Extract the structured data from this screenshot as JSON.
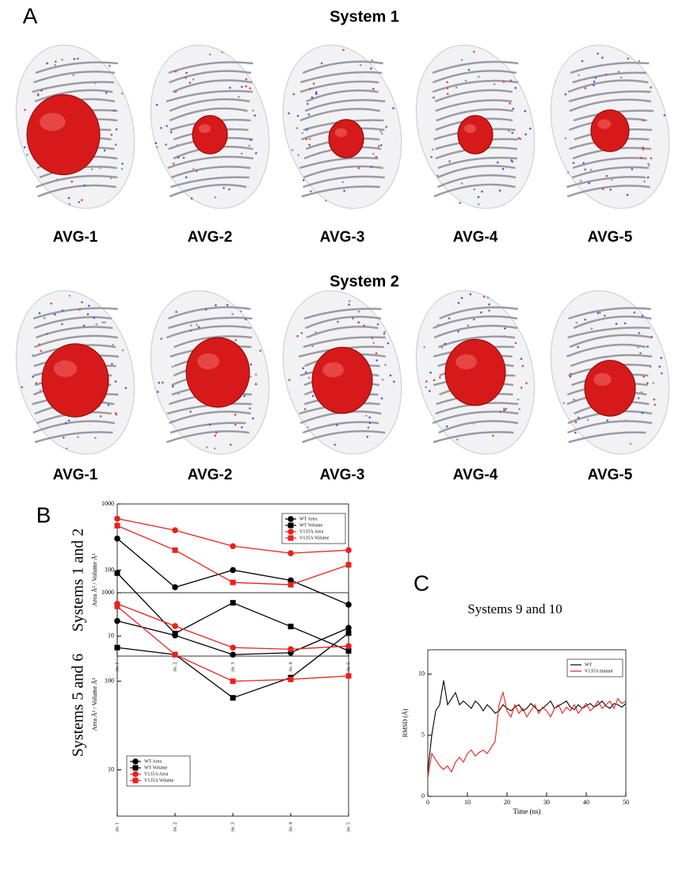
{
  "panel_labels": [
    "A",
    "B",
    "C"
  ],
  "structures": [
    {
      "title": "System 1",
      "labels": [
        "AVG-1",
        "AVG-2",
        "AVG-3",
        "AVG-4",
        "AVG-5"
      ]
    },
    {
      "title": "System 2",
      "labels": [
        "AVG-1",
        "AVG-2",
        "AVG-3",
        "AVG-4",
        "AVG-5"
      ]
    }
  ],
  "chart_data": [
    {
      "type": "line",
      "side_title": "Systems 1 and 2",
      "ylabel": "Area Å² / Volume Å³",
      "categories": [
        "Av. 1",
        "Av. 2",
        "Av. 3",
        "Av. 4",
        "Av. 5"
      ],
      "log_scale": true,
      "ylim": [
        5,
        1000
      ],
      "yticks": [
        10,
        100,
        1000
      ],
      "legend": "upper right",
      "series": [
        {
          "name": "WT Area",
          "color": "#000000",
          "marker": "circle",
          "values": [
            300,
            55,
            100,
            70,
            30
          ]
        },
        {
          "name": "WT Volume",
          "color": "#000000",
          "marker": "square",
          "values": [
            90,
            11,
            32,
            14,
            6
          ]
        },
        {
          "name": "V135A Area",
          "color": "#e8221c",
          "marker": "circle",
          "values": [
            600,
            400,
            230,
            180,
            200
          ]
        },
        {
          "name": "V135A Volume",
          "color": "#e8221c",
          "marker": "square",
          "values": [
            470,
            200,
            65,
            60,
            120
          ]
        }
      ]
    },
    {
      "type": "line",
      "side_title": "Systems 5 and 6",
      "ylabel": "Area Å² / Volume Å³",
      "categories": [
        "Av. 1",
        "Av. 2",
        "Av. 3",
        "Av. 4",
        "Av. 5"
      ],
      "log_scale": true,
      "ylim": [
        3,
        1000
      ],
      "yticks": [
        10,
        100,
        1000
      ],
      "legend": "lower left",
      "series": [
        {
          "name": "WT Area",
          "color": "#000000",
          "marker": "circle",
          "values": [
            480,
            330,
            200,
            210,
            400
          ]
        },
        {
          "name": "WT Volume",
          "color": "#000000",
          "marker": "square",
          "values": [
            240,
            200,
            65,
            110,
            350
          ]
        },
        {
          "name": "V135A Area",
          "color": "#e8221c",
          "marker": "circle",
          "values": [
            750,
            420,
            240,
            230,
            250
          ]
        },
        {
          "name": "V135A Volume",
          "color": "#e8221c",
          "marker": "square",
          "values": [
            700,
            200,
            100,
            105,
            115
          ]
        }
      ]
    },
    {
      "type": "timeseries",
      "title": "Systems 9 and 10",
      "xlabel": "Time (ns)",
      "ylabel": "RMSD (Å)",
      "xlim": [
        0,
        50
      ],
      "xticks": [
        0,
        10,
        20,
        30,
        40,
        50
      ],
      "ylim": [
        0,
        12
      ],
      "yticks": [
        0,
        5,
        10
      ],
      "legend": "upper right",
      "x": [
        0,
        1,
        2,
        3,
        4,
        5,
        6,
        7,
        8,
        9,
        10,
        11,
        12,
        13,
        14,
        15,
        16,
        17,
        18,
        19,
        20,
        21,
        22,
        23,
        24,
        25,
        26,
        27,
        28,
        29,
        30,
        31,
        32,
        33,
        34,
        35,
        36,
        37,
        38,
        39,
        40,
        41,
        42,
        43,
        44,
        45,
        46,
        47,
        48,
        49,
        50
      ],
      "series": [
        {
          "name": "WT",
          "color": "#000000",
          "values": [
            2,
            5,
            7,
            7.5,
            9.5,
            7.5,
            8,
            8.5,
            7.5,
            7.8,
            7.5,
            7.2,
            7.8,
            7.5,
            7,
            7.5,
            7.2,
            6.8,
            7,
            7.5,
            7.2,
            7,
            7.3,
            7.5,
            7,
            7.2,
            7.6,
            7.3,
            7,
            7.2,
            7.5,
            7.8,
            7.2,
            7.4,
            7.6,
            7.8,
            7.3,
            7.1,
            7.5,
            7.2,
            7.4,
            7.6,
            7.3,
            7.5,
            7.8,
            7.4,
            7.2,
            7.6,
            7.5,
            7.3,
            7.6
          ]
        },
        {
          "name": "V135A mutant",
          "color": "#e8221c",
          "values": [
            1.5,
            3.5,
            3,
            2.5,
            2.2,
            2.5,
            2,
            2.8,
            3.2,
            2.8,
            3.5,
            3.8,
            3.3,
            3.6,
            3.8,
            3.5,
            4,
            4.5,
            7.5,
            8.5,
            7,
            6.5,
            7.5,
            6.8,
            7.2,
            6.5,
            7,
            7.5,
            6.8,
            7.3,
            7,
            6.5,
            7.2,
            7.5,
            6.8,
            7.3,
            7,
            7.5,
            6.8,
            7.2,
            7.6,
            7,
            7.3,
            7.8,
            7.2,
            7.5,
            7.8,
            7.2,
            8,
            7.6,
            7.8
          ]
        }
      ]
    }
  ]
}
